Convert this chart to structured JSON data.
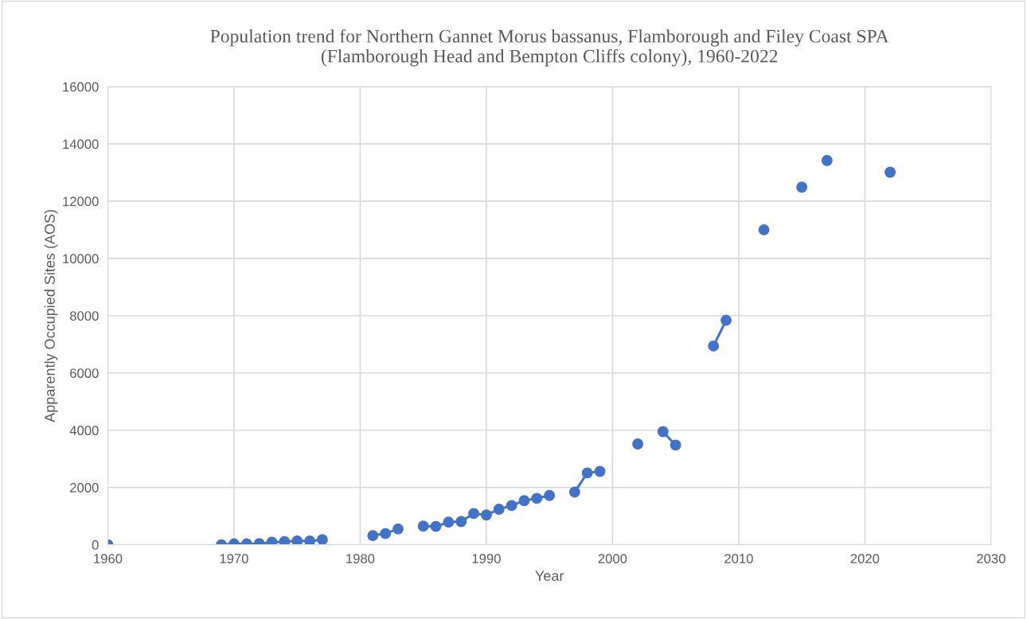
{
  "chart_data": {
    "type": "line",
    "title": "Population trend for Northern Gannet Morus bassanus, Flamborough and Filey Coast SPA\n(Flamborough Head and Bempton Cliffs colony), 1960-2022",
    "xlabel": "Year",
    "ylabel": "Apparently Occupied Sites (AOS)",
    "x": [
      1960,
      1961,
      1969,
      1970,
      1971,
      1972,
      1973,
      1974,
      1975,
      1976,
      1977,
      1978,
      1981,
      1982,
      1983,
      1984,
      1985,
      1986,
      1987,
      1988,
      1989,
      1990,
      1991,
      1992,
      1993,
      1994,
      1995,
      1996,
      1997,
      1998,
      1999,
      2000,
      2002,
      2003,
      2004,
      2005,
      2006,
      2008,
      2009,
      2010,
      2012,
      2013,
      2015,
      2016,
      2017,
      2018,
      2022
    ],
    "series": [
      {
        "color": "#4472c4",
        "values": [
          0,
          null,
          0,
          30,
          30,
          40,
          90,
          110,
          130,
          130,
          180,
          null,
          320,
          390,
          550,
          null,
          650,
          640,
          790,
          810,
          1090,
          1040,
          1240,
          1370,
          1540,
          1620,
          1720,
          null,
          1840,
          2510,
          2560,
          null,
          3520,
          null,
          3950,
          3480,
          null,
          6940,
          7840,
          null,
          11000,
          null,
          12490,
          null,
          13420,
          null,
          13010
        ]
      }
    ],
    "xlim": [
      1960,
      2030
    ],
    "xticks": [
      1960,
      1970,
      1980,
      1990,
      2000,
      2010,
      2020,
      2030
    ],
    "ylim": [
      0,
      16000
    ],
    "yticks": [
      0,
      2000,
      4000,
      6000,
      8000,
      10000,
      12000,
      14000,
      16000
    ],
    "grid": true,
    "marker": "circle",
    "line_style": "solid",
    "legend": false
  }
}
